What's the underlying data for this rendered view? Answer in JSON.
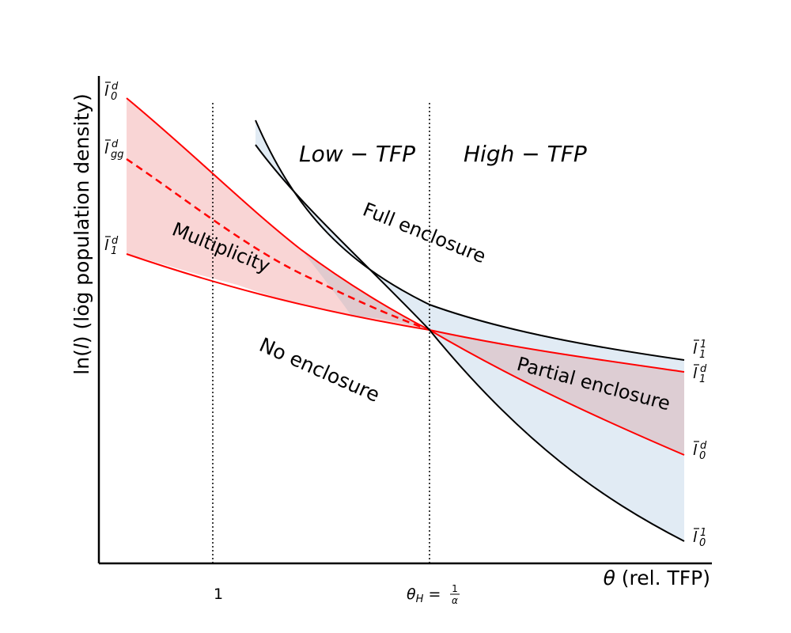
{
  "axes": {
    "ylabel_pre": "ln(",
    "ylabel_sym": "l",
    "ylabel_post": ") (log population density)",
    "xlabel_sym": "θ",
    "xlabel_post": " (rel. TFP)",
    "tick_one": "1",
    "tick_theta_sym": "θ",
    "tick_theta_sub": "H",
    "tick_theta_eq": " = ",
    "tick_frac_num": "1",
    "tick_frac_den": "α"
  },
  "regions": {
    "low_tfp": "Low − TFP",
    "high_tfp": "High − TFP",
    "full_enclosure": "Full enclosure",
    "multiplicity": "Multiplicity",
    "no_enclosure": "No enclosure",
    "partial_enclosure": "Partial enclosure"
  },
  "curve_labels": {
    "left": [
      {
        "base": "l",
        "sup": "d",
        "sub": "0"
      },
      {
        "base": "l",
        "sup": "d",
        "sub": "gg"
      },
      {
        "base": "l",
        "sup": "d",
        "sub": "1"
      }
    ],
    "right": [
      {
        "base": "l",
        "sup": "1",
        "sub": "1"
      },
      {
        "base": "l",
        "sup": "d",
        "sub": "1"
      },
      {
        "base": "l",
        "sup": "d",
        "sub": "0"
      },
      {
        "base": "l",
        "sup": "1",
        "sub": "0"
      }
    ]
  },
  "colors": {
    "red": "#ff0000",
    "black": "#000000",
    "red_fill": "#f8d0d0",
    "blue_fill": "#dce8f2",
    "overlap_fill": "#dcc8cc"
  }
}
